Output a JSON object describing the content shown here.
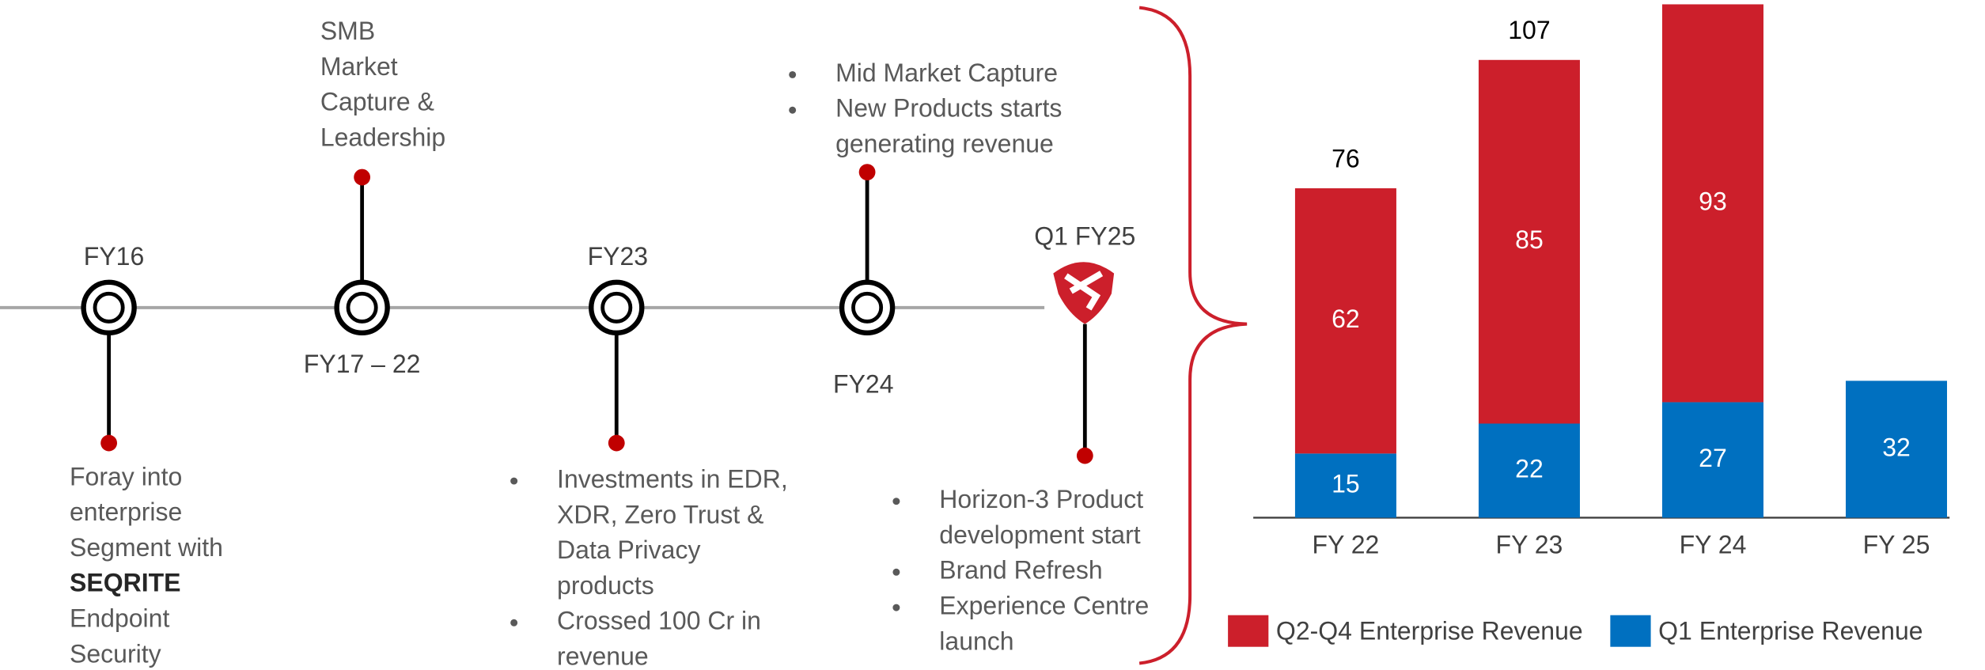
{
  "timeline": {
    "milestones": [
      {
        "label": "FY16",
        "text_lines": [
          "Foray into",
          "enterprise",
          "Segment with",
          "SEQRITE",
          "Endpoint",
          "Security"
        ]
      },
      {
        "label": "FY17 – 22",
        "text_lines": [
          "SMB",
          "Market",
          "Capture &",
          "Leadership"
        ]
      },
      {
        "label": "FY23",
        "bullets": [
          [
            "Investments in EDR,",
            "XDR, Zero Trust &",
            "Data Privacy",
            "products"
          ],
          [
            "Crossed 100 Cr in",
            "revenue"
          ]
        ]
      },
      {
        "label": "FY24",
        "bullets": [
          [
            "Mid Market Capture"
          ],
          [
            "New Products starts",
            "generating revenue"
          ]
        ]
      },
      {
        "label": "Q1 FY25",
        "bullets": [
          [
            "Horizon-3 Product",
            "development start"
          ],
          [
            "Brand Refresh"
          ],
          [
            "Experience Centre",
            "launch"
          ]
        ]
      }
    ]
  },
  "chart_data": {
    "type": "bar",
    "stacked": true,
    "categories": [
      "FY 22",
      "FY 23",
      "FY 24",
      "FY 25"
    ],
    "series": [
      {
        "name": "Q1 Enterprise Revenue",
        "color": "#0070c0",
        "values": [
          15,
          22,
          27,
          32
        ]
      },
      {
        "name": "Q2-Q4 Enterprise Revenue",
        "color": "#cc1f2b",
        "values": [
          62,
          85,
          93,
          null
        ]
      }
    ],
    "totals": [
      76,
      107,
      null,
      null
    ]
  }
}
